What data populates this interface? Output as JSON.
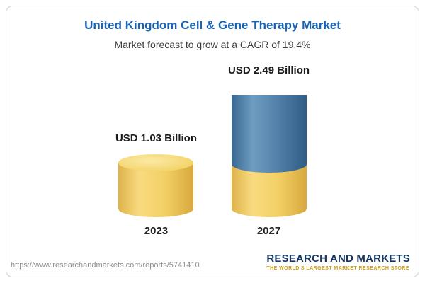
{
  "chart_data": {
    "type": "bar",
    "style": "3d-cylinder-stacked",
    "title": "United Kingdom Cell & Gene Therapy Market",
    "subtitle": "Market forecast to grow at a CAGR of 19.4%",
    "categories": [
      "2023",
      "2027"
    ],
    "values": [
      1.03,
      2.49
    ],
    "value_labels": [
      "USD 1.03 Billion",
      "USD 2.49 Billion"
    ],
    "unit": "USD Billion",
    "cagr": "19.4%",
    "legend": "none",
    "colors": {
      "base_segment": "#F0CD5F",
      "growth_segment": "#4D7FA9",
      "title": "#1A64B5"
    },
    "notes": "2027 bar is stacked: yellow base equals 2023 value, blue top is the forecast growth"
  },
  "footer": {
    "url": "https://www.researchandmarkets.com/reports/5741410",
    "logo_name": "RESEARCH AND MARKETS",
    "logo_tagline": "THE WORLD'S LARGEST MARKET RESEARCH STORE"
  }
}
